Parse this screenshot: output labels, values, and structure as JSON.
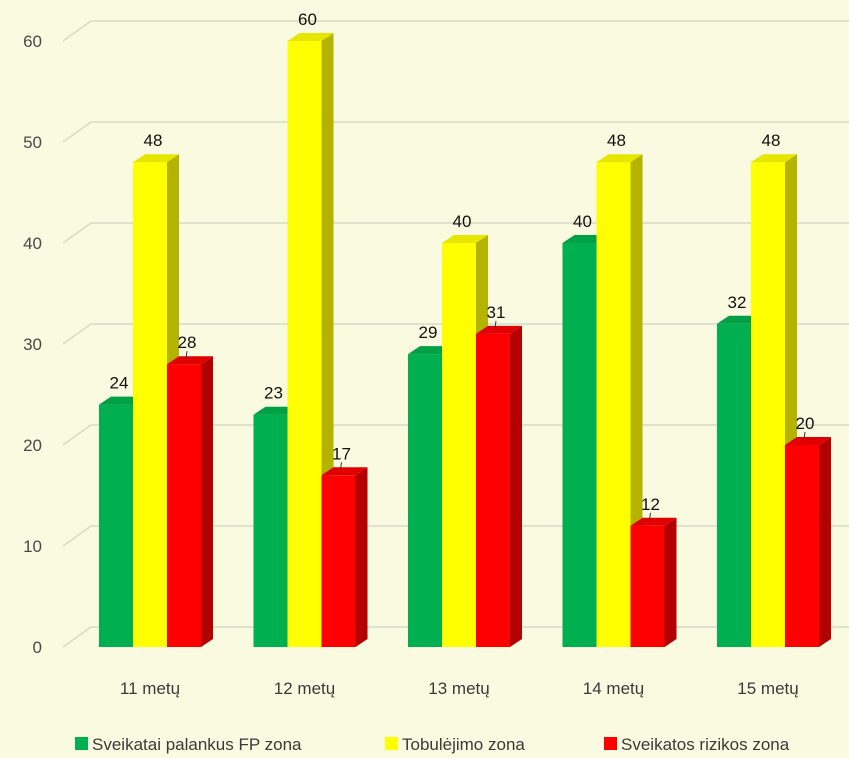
{
  "chart_data": {
    "type": "bar",
    "categories": [
      "11 metų",
      "12 metų",
      "13 metų",
      "14 metų",
      "15 metų"
    ],
    "series": [
      {
        "name": "Sveikatai palankus FP zona",
        "values": [
          24,
          23,
          29,
          40,
          32
        ],
        "color": "#00b050",
        "side": "#00853d",
        "top": "#00a046"
      },
      {
        "name": "Tobulėjimo zona",
        "values": [
          48,
          60,
          40,
          48,
          48
        ],
        "color": "#ffff00",
        "side": "#b3b300",
        "top": "#e6e600"
      },
      {
        "name": "Sveikatos rizikos zona",
        "values": [
          28,
          17,
          31,
          12,
          20
        ],
        "color": "#ff0000",
        "side": "#b30000",
        "top": "#e00000"
      }
    ],
    "yticks": [
      0,
      10,
      20,
      30,
      40,
      50,
      60
    ],
    "ylim": [
      0,
      60
    ],
    "grid": true,
    "legend": "bottom"
  }
}
